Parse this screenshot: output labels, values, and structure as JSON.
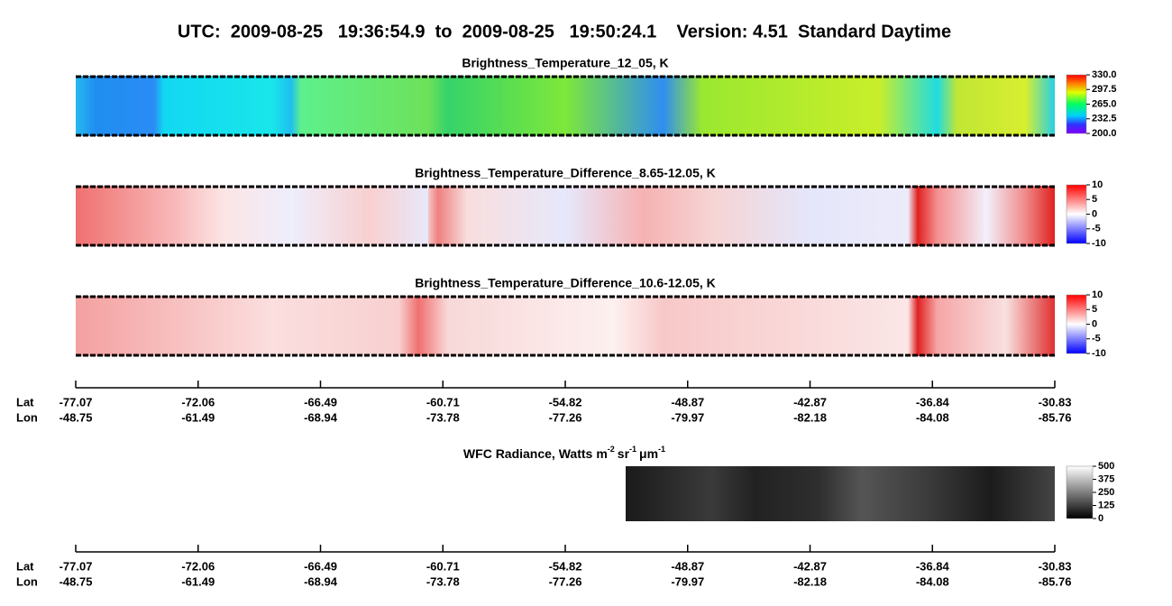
{
  "header": {
    "title": "UTC:  2009-08-25   19:36:54.9  to  2009-08-25   19:50:24.1    Version: 4.51  Standard Daytime"
  },
  "panels": [
    {
      "title": "Brightness_Temperature_12_05, K",
      "colorbar": [
        "330.0",
        "297.5",
        "265.0",
        "232.5",
        "200.0"
      ]
    },
    {
      "title": "Brightness_Temperature_Difference_8.65-12.05, K",
      "colorbar": [
        "10",
        "5",
        "0",
        "-5",
        "-10"
      ]
    },
    {
      "title": "Brightness_Temperature_Difference_10.6-12.05, K",
      "colorbar": [
        "10",
        "5",
        "0",
        "-5",
        "-10"
      ]
    }
  ],
  "axes": [
    {
      "lat_label": "Lat",
      "lon_label": "Lon",
      "lat": [
        "-77.07",
        "-72.06",
        "-66.49",
        "-60.71",
        "-54.82",
        "-48.87",
        "-42.87",
        "-36.84",
        "-30.83"
      ],
      "lon": [
        "-48.75",
        "-61.49",
        "-68.94",
        "-73.78",
        "-77.26",
        "-79.97",
        "-82.18",
        "-84.08",
        "-85.76"
      ]
    },
    {
      "lat_label": "Lat",
      "lon_label": "Lon",
      "lat": [
        "-77.07",
        "-72.06",
        "-66.49",
        "-60.71",
        "-54.82",
        "-48.87",
        "-42.87",
        "-36.84",
        "-30.83"
      ],
      "lon": [
        "-48.75",
        "-61.49",
        "-68.94",
        "-73.78",
        "-77.26",
        "-79.97",
        "-82.18",
        "-84.08",
        "-85.76"
      ]
    }
  ],
  "wfc": {
    "title": "WFC Radiance, Watts",
    "units": [
      {
        "base": "m",
        "exp": "-2"
      },
      {
        "base": "sr",
        "exp": "-1"
      },
      {
        "base": "μm",
        "exp": "-1"
      }
    ],
    "colorbar": [
      "500",
      "375",
      "250",
      "125",
      "0"
    ]
  }
}
